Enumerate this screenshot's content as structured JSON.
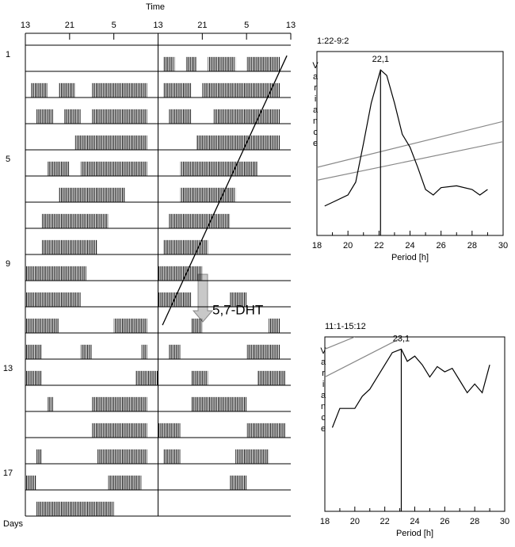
{
  "actogram": {
    "title": "Time",
    "ylabel": "Days",
    "xlim": [
      0,
      48
    ],
    "xticks": [
      {
        "value": 0,
        "label": "13"
      },
      {
        "value": 8,
        "label": "21"
      },
      {
        "value": 16,
        "label": "5"
      },
      {
        "value": 24,
        "label": "13"
      },
      {
        "value": 32,
        "label": "21"
      },
      {
        "value": 40,
        "label": "5"
      },
      {
        "value": 48,
        "label": "13"
      }
    ],
    "day_ticks": [
      1,
      5,
      9,
      13,
      17
    ],
    "rows": [
      {
        "activity": [
          [
            25,
            27
          ],
          [
            29,
            31
          ],
          [
            33,
            38
          ],
          [
            40,
            46
          ]
        ]
      },
      {
        "activity": [
          [
            1,
            4
          ],
          [
            6,
            9
          ],
          [
            12,
            22
          ],
          [
            25,
            30
          ],
          [
            32,
            46
          ]
        ]
      },
      {
        "activity": [
          [
            2,
            5
          ],
          [
            7,
            10
          ],
          [
            12,
            22
          ],
          [
            26,
            30
          ],
          [
            34,
            46
          ]
        ]
      },
      {
        "activity": [
          [
            9,
            22
          ],
          [
            31,
            46
          ]
        ]
      },
      {
        "activity": [
          [
            4,
            8
          ],
          [
            10,
            22
          ],
          [
            28,
            42
          ]
        ]
      },
      {
        "activity": [
          [
            6,
            18
          ],
          [
            28,
            38
          ]
        ]
      },
      {
        "activity": [
          [
            3,
            15
          ],
          [
            26,
            37
          ]
        ]
      },
      {
        "activity": [
          [
            3,
            13
          ],
          [
            25,
            33
          ]
        ]
      },
      {
        "activity": [
          [
            0,
            11
          ],
          [
            24,
            32
          ]
        ]
      },
      {
        "activity": [
          [
            0,
            10
          ],
          [
            24,
            30
          ],
          [
            37,
            40
          ]
        ]
      },
      {
        "activity": [
          [
            0,
            6
          ],
          [
            16,
            22
          ],
          [
            30,
            32
          ],
          [
            44,
            46
          ]
        ]
      },
      {
        "activity": [
          [
            0,
            3
          ],
          [
            10,
            12
          ],
          [
            21,
            22
          ],
          [
            26,
            28
          ],
          [
            40,
            46
          ]
        ]
      },
      {
        "activity": [
          [
            0,
            3
          ],
          [
            20,
            24
          ],
          [
            30,
            33
          ],
          [
            42,
            47
          ]
        ]
      },
      {
        "activity": [
          [
            4,
            5
          ],
          [
            12,
            22
          ],
          [
            30,
            40
          ]
        ]
      },
      {
        "activity": [
          [
            12,
            22
          ],
          [
            24,
            28
          ],
          [
            40,
            47
          ]
        ]
      },
      {
        "activity": [
          [
            2,
            3
          ],
          [
            13,
            22
          ],
          [
            25,
            28
          ],
          [
            38,
            44
          ]
        ]
      },
      {
        "activity": [
          [
            0,
            2
          ],
          [
            15,
            21
          ],
          [
            37,
            40
          ]
        ]
      },
      {
        "activity": [
          [
            2,
            16
          ]
        ]
      }
    ],
    "fit_line": {
      "x": [
        47.3,
        24.8
      ],
      "day": [
        1.4,
        11.7
      ]
    },
    "treatment": "5,7-DHT"
  },
  "chart_data": [
    {
      "type": "line",
      "title": "1:22-9:2",
      "xlabel": "Period [h]",
      "ylabel": "Variance",
      "xlim": [
        18,
        30
      ],
      "ylim": [
        0,
        100
      ],
      "xticks": [
        18,
        20,
        22,
        24,
        26,
        28,
        30
      ],
      "xticks_minor": [
        19,
        21,
        23,
        25,
        27,
        29
      ],
      "x": [
        18.5,
        19,
        20,
        20.5,
        21,
        21.5,
        22.1,
        22.5,
        23,
        23.5,
        24,
        24.5,
        25,
        25.5,
        26,
        27,
        28,
        28.5,
        29
      ],
      "series": [
        {
          "color": "#000000",
          "values": [
            16,
            18,
            22,
            29,
            50,
            72,
            90,
            87,
            72,
            55,
            48,
            37,
            25,
            22,
            26,
            27,
            25,
            22,
            25
          ]
        }
      ],
      "thresholds": [
        {
          "color": "#888888",
          "x": [
            18,
            30
          ],
          "values": [
            37,
            62
          ]
        },
        {
          "color": "#888888",
          "x": [
            18,
            30
          ],
          "values": [
            30,
            51
          ]
        }
      ],
      "peak": {
        "value": 22.1,
        "label": "22,1"
      }
    },
    {
      "type": "line",
      "title": "11:1-15:12",
      "xlabel": "Period [h]",
      "ylabel": "Variance",
      "xlim": [
        18,
        30
      ],
      "ylim": [
        0,
        100
      ],
      "xticks": [
        18,
        20,
        22,
        24,
        26,
        28,
        30
      ],
      "xticks_minor": [
        19,
        21,
        23,
        25,
        27,
        29
      ],
      "x": [
        18.5,
        19,
        20,
        20.5,
        21,
        21.5,
        22,
        22.5,
        23.1,
        23.5,
        24,
        24.5,
        25,
        25.5,
        26,
        26.5,
        27,
        27.5,
        28,
        28.5,
        29
      ],
      "series": [
        {
          "color": "#000000",
          "values": [
            48,
            59,
            59,
            66,
            70,
            77,
            84,
            91,
            93,
            86,
            89,
            84,
            77,
            83,
            80,
            82,
            75,
            68,
            73,
            68,
            84
          ]
        }
      ],
      "thresholds": [
        {
          "color": "#888888",
          "x": [
            18,
            20
          ],
          "values": [
            93,
            100
          ]
        },
        {
          "color": "#888888",
          "x": [
            18,
            23
          ],
          "values": [
            77,
            99
          ]
        }
      ],
      "peak": {
        "value": 23.1,
        "label": "23,1"
      }
    }
  ]
}
